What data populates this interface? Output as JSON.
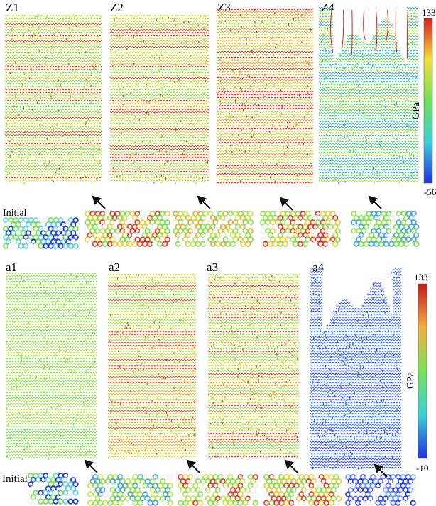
{
  "panels": [
    {
      "id": "z1",
      "label": "Z1",
      "palette": [
        "#7bd95a",
        "#9ede5b",
        "#c6e45a",
        "#e0de55",
        "#d8643a"
      ],
      "fracture": false
    },
    {
      "id": "z2",
      "label": "Z2",
      "palette": [
        "#8ee25c",
        "#b3e45c",
        "#d4e258",
        "#e9c84e",
        "#d9563a"
      ],
      "fracture": false
    },
    {
      "id": "z3",
      "label": "Z3",
      "palette": [
        "#a9e35c",
        "#cfe25a",
        "#e6cf52",
        "#eb9f45",
        "#d4413a"
      ],
      "fracture": false
    },
    {
      "id": "z4",
      "label": "Z4",
      "palette": [
        "#6fd86a",
        "#55c9b5",
        "#4fa8e0",
        "#9de05a",
        "#c9e25a"
      ],
      "fracture": true
    },
    {
      "id": "a1",
      "label": "a1",
      "palette": [
        "#8fe05c",
        "#a9e15c",
        "#c5e45a",
        "#7fd25e",
        "#b6e4a0"
      ],
      "fracture": false
    },
    {
      "id": "a2",
      "label": "a2",
      "palette": [
        "#9ae05c",
        "#c1e35a",
        "#dde259",
        "#e3b04c",
        "#d8573b"
      ],
      "fracture": false
    },
    {
      "id": "a3",
      "label": "a3",
      "palette": [
        "#94df5c",
        "#bce25b",
        "#d8e158",
        "#e3a84a",
        "#d34b3b"
      ],
      "fracture": false
    },
    {
      "id": "a4",
      "label": "a4",
      "palette": [
        "#3f4fd8",
        "#5a6bf0",
        "#3a6be0",
        "#4d8ae8",
        "#79a9f2"
      ],
      "fracture": true
    }
  ],
  "colorbars": [
    {
      "id": "top",
      "max_label": "133",
      "min_label": "-56",
      "unit": "GPa"
    },
    {
      "id": "bottom",
      "max_label": "133",
      "min_label": "-10",
      "unit": "GPa"
    }
  ],
  "insets": [
    {
      "row": "top",
      "label": "Initial",
      "dominant": [
        "#2d43d6",
        "#f2f2f2",
        "#6ad0e0",
        "#7be05a"
      ]
    },
    {
      "row": "top",
      "label": "",
      "dominant": [
        "#d8463a",
        "#e6d24f",
        "#7be05a",
        "#f2f2f2"
      ]
    },
    {
      "row": "top",
      "label": "",
      "dominant": [
        "#8fe05c",
        "#c5e45a",
        "#f2f2f2",
        "#e3b04c"
      ]
    },
    {
      "row": "top",
      "label": "",
      "dominant": [
        "#e6d24f",
        "#8fe05c",
        "#d8463a",
        "#f2f2f2"
      ]
    },
    {
      "row": "top",
      "label": "",
      "dominant": [
        "#7be05a",
        "#4fa8e0",
        "#f2f2f2",
        "#9de05a"
      ]
    },
    {
      "row": "bottom",
      "label": "Initial",
      "dominant": [
        "#2d43d6",
        "#f2f2f2",
        "#6ad0e0",
        "#7be05a"
      ]
    },
    {
      "row": "bottom",
      "label": "",
      "dominant": [
        "#8fe05c",
        "#c5e45a",
        "#f2f2f2",
        "#4fa8e0"
      ]
    },
    {
      "row": "bottom",
      "label": "",
      "dominant": [
        "#8fe05c",
        "#c5e45a",
        "#d8463a",
        "#f2f2f2"
      ]
    },
    {
      "row": "bottom",
      "label": "",
      "dominant": [
        "#e6d24f",
        "#8fe05c",
        "#d8463a",
        "#f2f2f2"
      ]
    },
    {
      "row": "bottom",
      "label": "",
      "dominant": [
        "#2d43d6",
        "#5a6bf0",
        "#f2f2f2",
        "#79a9f2"
      ]
    }
  ]
}
